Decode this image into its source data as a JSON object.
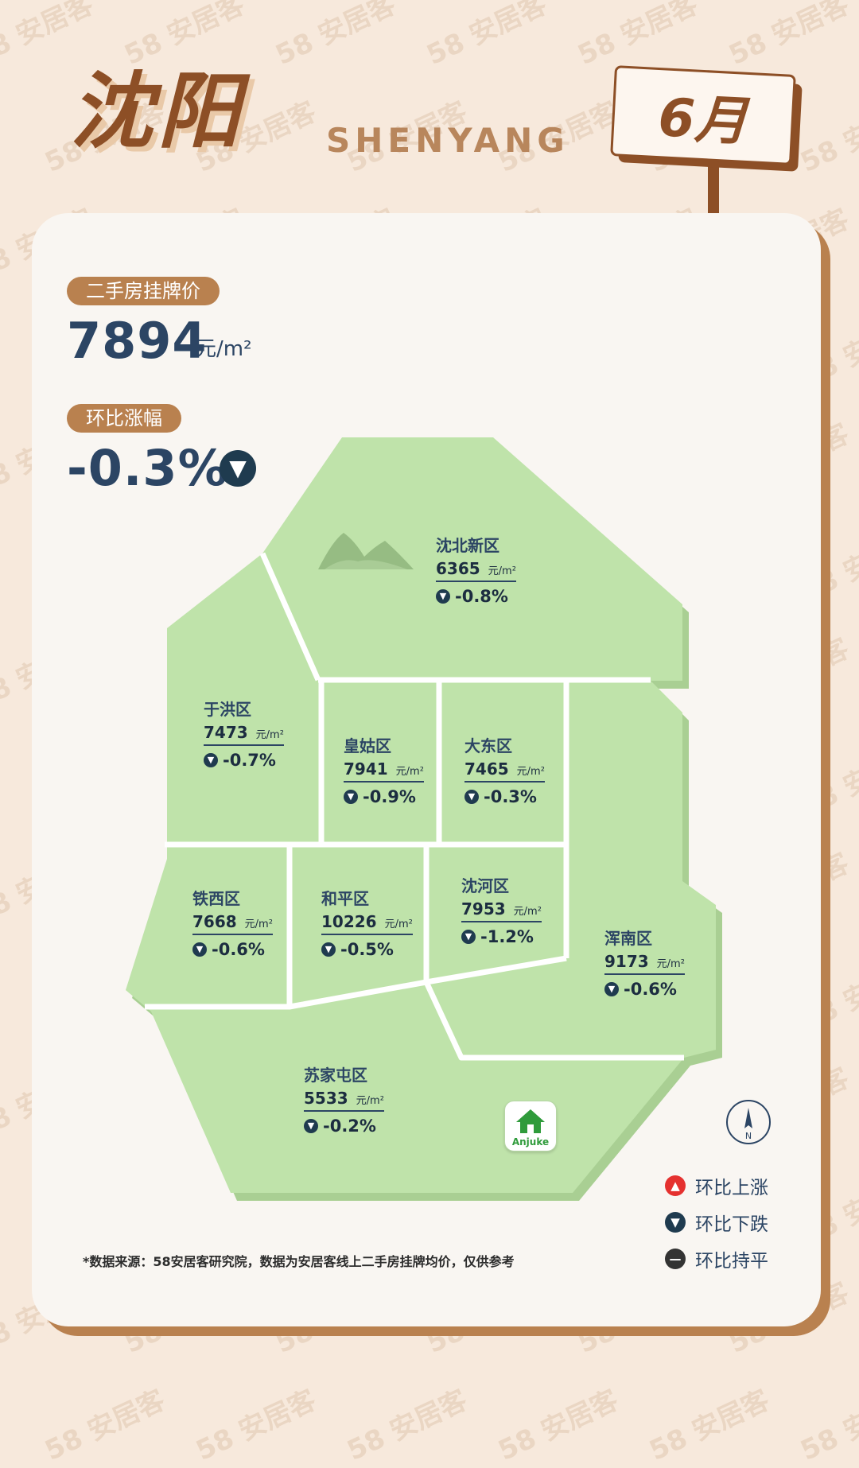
{
  "header": {
    "city_cn": "沈阳",
    "city_en": "SHENYANG",
    "month": "6月"
  },
  "summary": {
    "price_label": "二手房挂牌价",
    "price_value": "7894",
    "price_unit": "元/m²",
    "change_label": "环比涨幅",
    "change_value": "-0.3%",
    "change_direction": "down"
  },
  "districts": [
    {
      "name": "沈北新区",
      "price": "6365",
      "unit": "元/m²",
      "change": "-0.8%",
      "direction": "down"
    },
    {
      "name": "于洪区",
      "price": "7473",
      "unit": "元/m²",
      "change": "-0.7%",
      "direction": "down"
    },
    {
      "name": "皇姑区",
      "price": "7941",
      "unit": "元/m²",
      "change": "-0.9%",
      "direction": "down"
    },
    {
      "name": "大东区",
      "price": "7465",
      "unit": "元/m²",
      "change": "-0.3%",
      "direction": "down"
    },
    {
      "name": "铁西区",
      "price": "7668",
      "unit": "元/m²",
      "change": "-0.6%",
      "direction": "down"
    },
    {
      "name": "和平区",
      "price": "10226",
      "unit": "元/m²",
      "change": "-0.5%",
      "direction": "down"
    },
    {
      "name": "沈河区",
      "price": "7953",
      "unit": "元/m²",
      "change": "-1.2%",
      "direction": "down"
    },
    {
      "name": "浑南区",
      "price": "9173",
      "unit": "元/m²",
      "change": "-0.6%",
      "direction": "down"
    },
    {
      "name": "苏家屯区",
      "price": "5533",
      "unit": "元/m²",
      "change": "-0.2%",
      "direction": "down"
    }
  ],
  "logo": {
    "text": "Anjuke"
  },
  "compass": {
    "label": "N"
  },
  "legend": [
    {
      "label": "环比上涨",
      "color": "#e5312f",
      "symbol": "▲"
    },
    {
      "label": "环比下跌",
      "color": "#1f3b4f",
      "symbol": "▼"
    },
    {
      "label": "环比持平",
      "color": "#333333",
      "symbol": "—"
    }
  ],
  "footnote": "*数据来源：58安居客研究院，数据为安居客线上二手房挂牌均价，仅供参考",
  "watermark": "58 安居客",
  "colors": {
    "background": "#f7e9dc",
    "brand_brown": "#b9814f",
    "map_fill": "#bfe3aa",
    "navy_text": "#2c4564",
    "down": "#1f3b4f",
    "up": "#e5312f"
  }
}
